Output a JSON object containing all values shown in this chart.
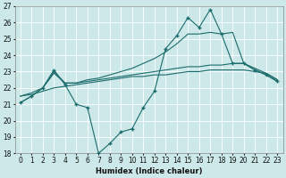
{
  "xlabel": "Humidex (Indice chaleur)",
  "xlim": [
    -0.5,
    23.5
  ],
  "ylim": [
    18,
    27
  ],
  "yticks": [
    18,
    19,
    20,
    21,
    22,
    23,
    24,
    25,
    26,
    27
  ],
  "xticks": [
    0,
    1,
    2,
    3,
    4,
    5,
    6,
    7,
    8,
    9,
    10,
    11,
    12,
    13,
    14,
    15,
    16,
    17,
    18,
    19,
    20,
    21,
    22,
    23
  ],
  "background_color": "#cce8e8",
  "grid_color": "#ffffff",
  "line_color": "#1a6b6b",
  "lines": [
    {
      "x": [
        0,
        1,
        2,
        3,
        4,
        5,
        6,
        7,
        8,
        9,
        10,
        11,
        12,
        13,
        14,
        15,
        16,
        17,
        18,
        19,
        20,
        21,
        22,
        23
      ],
      "y": [
        21.1,
        21.5,
        22.0,
        23.1,
        22.2,
        21.0,
        20.8,
        18.0,
        18.6,
        19.3,
        19.5,
        20.8,
        21.8,
        24.4,
        25.2,
        26.3,
        25.7,
        26.8,
        25.3,
        23.5,
        23.5,
        23.1,
        22.8,
        22.4
      ],
      "marker": "+"
    },
    {
      "x": [
        0,
        1,
        2,
        3,
        4,
        5,
        6,
        7,
        8,
        9,
        10,
        11,
        12,
        13,
        14,
        15,
        16,
        17,
        18,
        19,
        20,
        21,
        22,
        23
      ],
      "y": [
        21.5,
        21.6,
        21.8,
        22.0,
        22.1,
        22.2,
        22.3,
        22.4,
        22.5,
        22.6,
        22.7,
        22.7,
        22.8,
        22.8,
        22.9,
        23.0,
        23.0,
        23.1,
        23.1,
        23.1,
        23.1,
        23.0,
        22.9,
        22.5
      ],
      "marker": null
    },
    {
      "x": [
        0,
        1,
        2,
        3,
        4,
        5,
        6,
        7,
        8,
        9,
        10,
        11,
        12,
        13,
        14,
        15,
        16,
        17,
        18,
        19,
        20,
        21,
        22,
        23
      ],
      "y": [
        21.5,
        21.7,
        22.0,
        22.9,
        22.3,
        22.3,
        22.4,
        22.5,
        22.6,
        22.7,
        22.8,
        22.9,
        23.0,
        23.1,
        23.2,
        23.3,
        23.3,
        23.4,
        23.4,
        23.5,
        23.5,
        23.2,
        22.9,
        22.5
      ],
      "marker": null
    },
    {
      "x": [
        0,
        1,
        2,
        3,
        4,
        5,
        6,
        7,
        8,
        9,
        10,
        11,
        12,
        13,
        14,
        15,
        16,
        17,
        18,
        19,
        20,
        21,
        22,
        23
      ],
      "y": [
        21.1,
        21.5,
        22.0,
        23.0,
        22.3,
        22.3,
        22.5,
        22.6,
        22.8,
        23.0,
        23.2,
        23.5,
        23.8,
        24.2,
        24.7,
        25.3,
        25.3,
        25.4,
        25.3,
        25.4,
        23.5,
        23.1,
        22.8,
        22.4
      ],
      "marker": null
    }
  ]
}
